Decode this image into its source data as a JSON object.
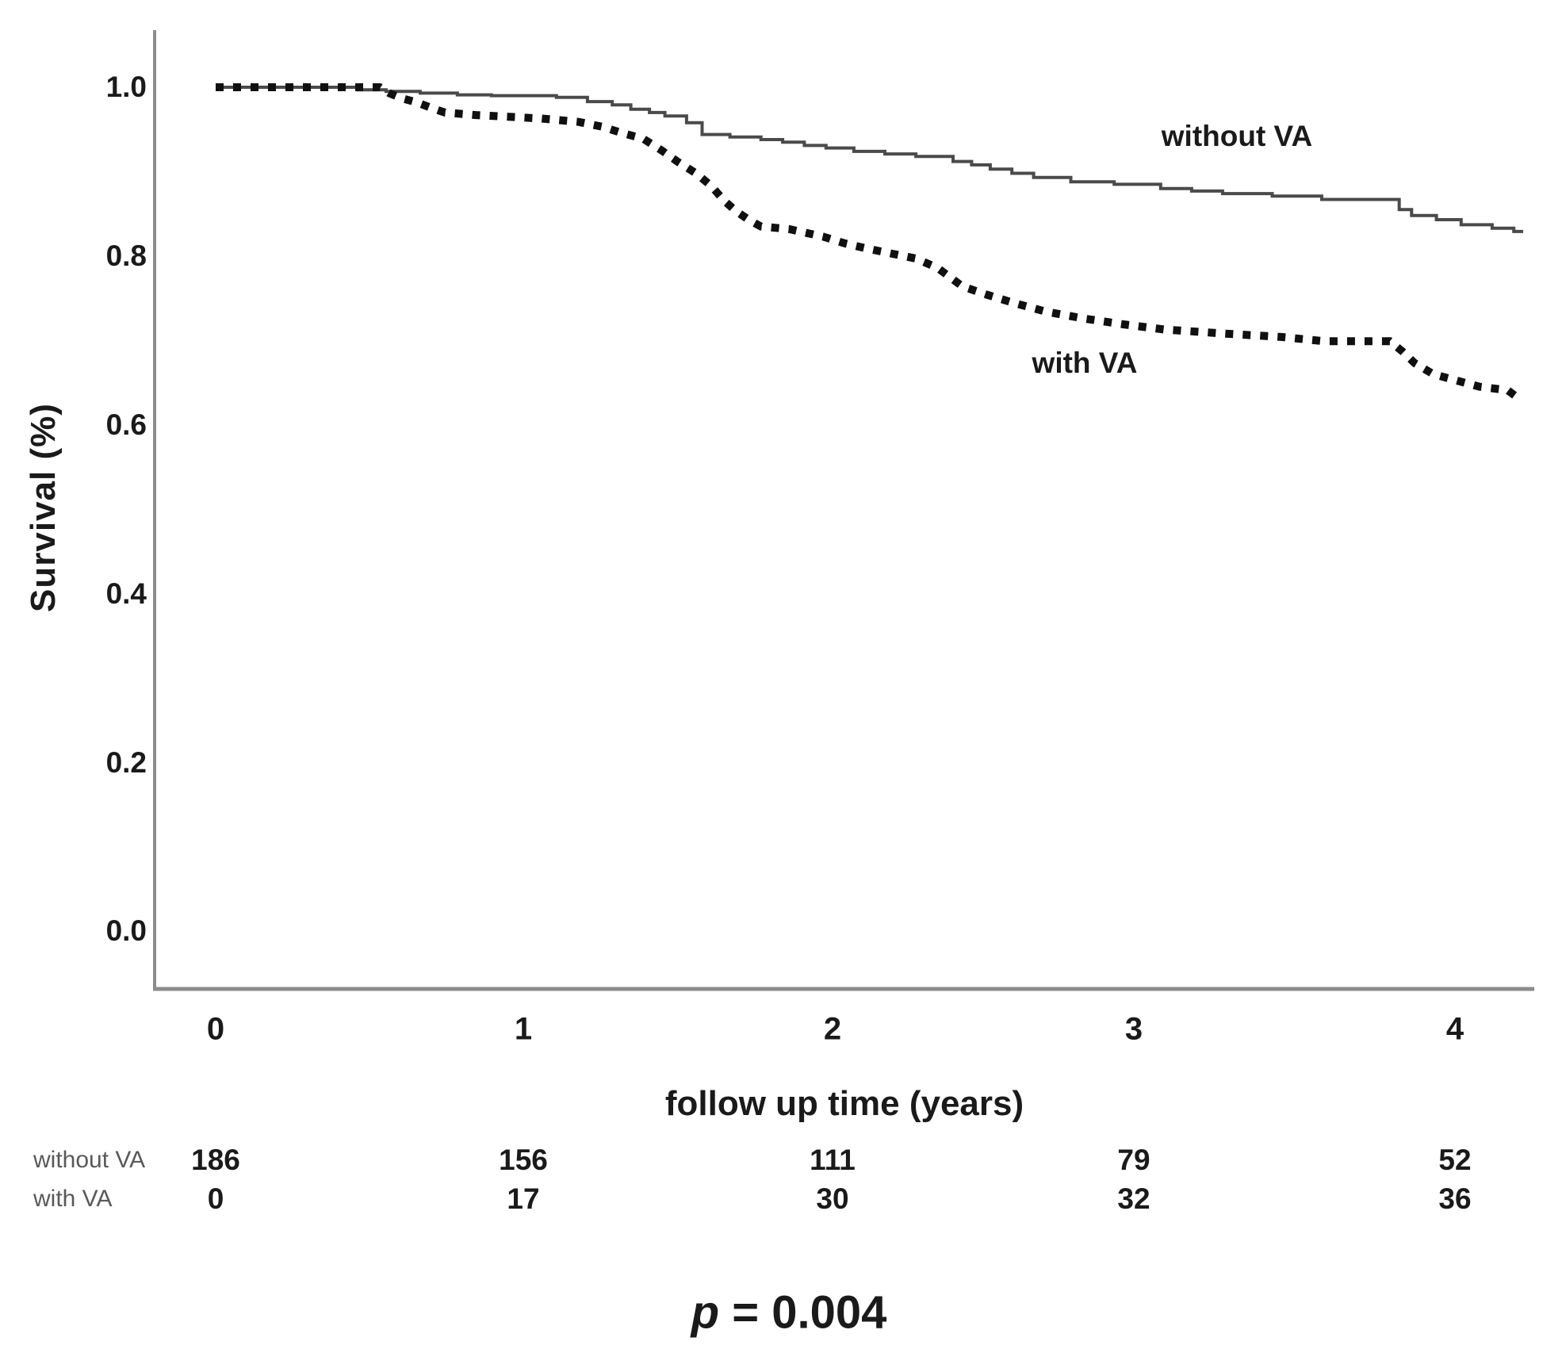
{
  "figure": {
    "y_axis_title": "Survival (%)",
    "x_axis_title": "follow up time (years)",
    "y_ticks": [
      "1.0",
      "0.8",
      "0.6",
      "0.4",
      "0.2",
      "0.0"
    ],
    "x_ticks": [
      "0",
      "1",
      "2",
      "3",
      "4"
    ],
    "curve_labels": {
      "solid": "without VA",
      "dotted": "with VA"
    },
    "risk_table": {
      "rows": [
        {
          "label": "without VA",
          "counts": [
            "186",
            "156",
            "111",
            "79",
            "52"
          ]
        },
        {
          "label": "with VA",
          "counts": [
            "0",
            "17",
            "30",
            "32",
            "36"
          ]
        }
      ]
    },
    "annotation": {
      "p_symbol": "p",
      "p_rest": " = 0.004"
    }
  },
  "chart_data": {
    "type": "line",
    "title": "",
    "xlabel": "follow up time (years)",
    "ylabel": "Survival (%)",
    "xlim": [
      0,
      4.3
    ],
    "ylim": [
      0.0,
      1.05
    ],
    "x_tick_values": [
      0,
      1,
      2,
      3,
      4
    ],
    "y_tick_values": [
      1.0,
      0.8,
      0.6,
      0.4,
      0.2,
      0.0
    ],
    "grid": false,
    "legend_position": "inline-labels",
    "p_value": "p = 0.004",
    "colors": {
      "solid_curve": "#4a4a4a",
      "dotted_curve": "#101010",
      "axis": "#8c8c8c"
    },
    "series": [
      {
        "name": "without VA",
        "style": "solid-step",
        "end_t": 4.22,
        "points": [
          [
            0,
            1.0
          ],
          [
            0.46,
            0.997
          ],
          [
            0.55,
            0.995
          ],
          [
            0.66,
            0.993
          ],
          [
            0.78,
            0.991
          ],
          [
            0.89,
            0.99
          ],
          [
            1.1,
            0.988
          ],
          [
            1.2,
            0.983
          ],
          [
            1.28,
            0.979
          ],
          [
            1.34,
            0.974
          ],
          [
            1.4,
            0.97
          ],
          [
            1.45,
            0.966
          ],
          [
            1.52,
            0.958
          ],
          [
            1.57,
            0.944
          ],
          [
            1.66,
            0.941
          ],
          [
            1.76,
            0.938
          ],
          [
            1.83,
            0.935
          ],
          [
            1.9,
            0.931
          ],
          [
            1.97,
            0.928
          ],
          [
            2.06,
            0.924
          ],
          [
            2.16,
            0.921
          ],
          [
            2.26,
            0.918
          ],
          [
            2.38,
            0.912
          ],
          [
            2.44,
            0.908
          ],
          [
            2.5,
            0.903
          ],
          [
            2.57,
            0.898
          ],
          [
            2.64,
            0.893
          ],
          [
            2.76,
            0.888
          ],
          [
            2.9,
            0.885
          ],
          [
            3.05,
            0.88
          ],
          [
            3.15,
            0.877
          ],
          [
            3.25,
            0.874
          ],
          [
            3.41,
            0.871
          ],
          [
            3.57,
            0.867
          ],
          [
            3.82,
            0.855
          ],
          [
            3.86,
            0.848
          ],
          [
            3.94,
            0.843
          ],
          [
            4.02,
            0.837
          ],
          [
            4.12,
            0.833
          ],
          [
            4.19,
            0.829
          ]
        ]
      },
      {
        "name": "with VA",
        "style": "dotted-linear",
        "end_t": 4.21,
        "points": [
          [
            0,
            1.0
          ],
          [
            0.53,
            1.0
          ],
          [
            0.56,
            0.993
          ],
          [
            0.6,
            0.987
          ],
          [
            0.65,
            0.982
          ],
          [
            0.7,
            0.975
          ],
          [
            0.74,
            0.97
          ],
          [
            0.84,
            0.967
          ],
          [
            1.05,
            0.963
          ],
          [
            1.17,
            0.959
          ],
          [
            1.25,
            0.953
          ],
          [
            1.31,
            0.946
          ],
          [
            1.38,
            0.939
          ],
          [
            1.44,
            0.925
          ],
          [
            1.49,
            0.912
          ],
          [
            1.55,
            0.898
          ],
          [
            1.6,
            0.883
          ],
          [
            1.64,
            0.866
          ],
          [
            1.68,
            0.853
          ],
          [
            1.72,
            0.843
          ],
          [
            1.76,
            0.835
          ],
          [
            1.85,
            0.832
          ],
          [
            1.96,
            0.823
          ],
          [
            2.03,
            0.815
          ],
          [
            2.1,
            0.809
          ],
          [
            2.18,
            0.803
          ],
          [
            2.26,
            0.797
          ],
          [
            2.33,
            0.786
          ],
          [
            2.41,
            0.764
          ],
          [
            2.49,
            0.754
          ],
          [
            2.58,
            0.744
          ],
          [
            2.68,
            0.734
          ],
          [
            2.8,
            0.726
          ],
          [
            2.93,
            0.719
          ],
          [
            3.06,
            0.713
          ],
          [
            3.26,
            0.708
          ],
          [
            3.44,
            0.704
          ],
          [
            3.58,
            0.699
          ],
          [
            3.79,
            0.699
          ],
          [
            3.83,
            0.687
          ],
          [
            3.87,
            0.673
          ],
          [
            3.93,
            0.66
          ],
          [
            4.0,
            0.653
          ],
          [
            4.08,
            0.645
          ],
          [
            4.17,
            0.641
          ],
          [
            4.21,
            0.63
          ]
        ]
      }
    ],
    "at_risk": {
      "times": [
        0,
        1,
        2,
        3,
        4
      ],
      "without_VA": [
        186,
        156,
        111,
        79,
        52
      ],
      "with_VA": [
        0,
        17,
        30,
        32,
        36
      ]
    }
  }
}
